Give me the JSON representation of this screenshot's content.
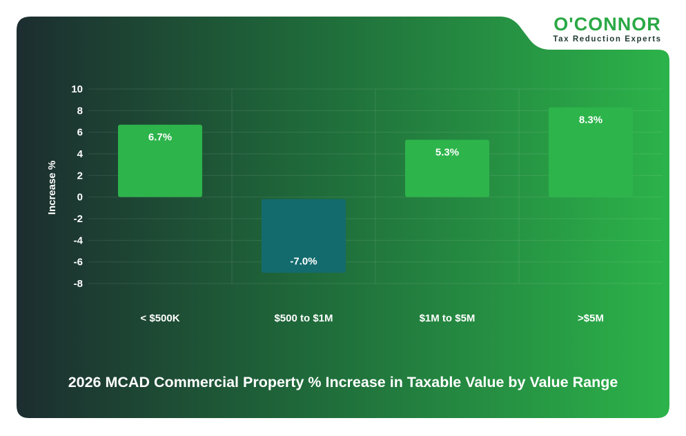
{
  "brand": {
    "name": "O'CONNOR",
    "tagline": "Tax Reduction Experts",
    "colors": {
      "green": "#2aa845",
      "dark": "#1f3a2e"
    }
  },
  "colors": {
    "bg_dark": "#1c2d2f",
    "bg_mid": "#1f6a3a",
    "bg_light": "#2cb34a",
    "positive_bar": "#2db44b",
    "negative_bar": "#136b6e"
  },
  "chart_data": {
    "type": "bar",
    "title": "2026 MCAD Commercial Property % Increase in Taxable Value by Value Range",
    "xlabel": "",
    "ylabel": "Increase %",
    "categories": [
      "< $500K",
      "$500 to $1M",
      "$1M to $5M",
      ">$5M"
    ],
    "values": [
      6.7,
      -7.0,
      5.3,
      8.3
    ],
    "data_labels": [
      "6.7%",
      "-7.0%",
      "5.3%",
      "8.3%"
    ],
    "ylim": [
      -8,
      10
    ],
    "yticks": [
      10,
      8,
      6,
      4,
      2,
      0,
      -2,
      -4,
      -6,
      -8
    ],
    "grid": true,
    "legend": "none"
  }
}
